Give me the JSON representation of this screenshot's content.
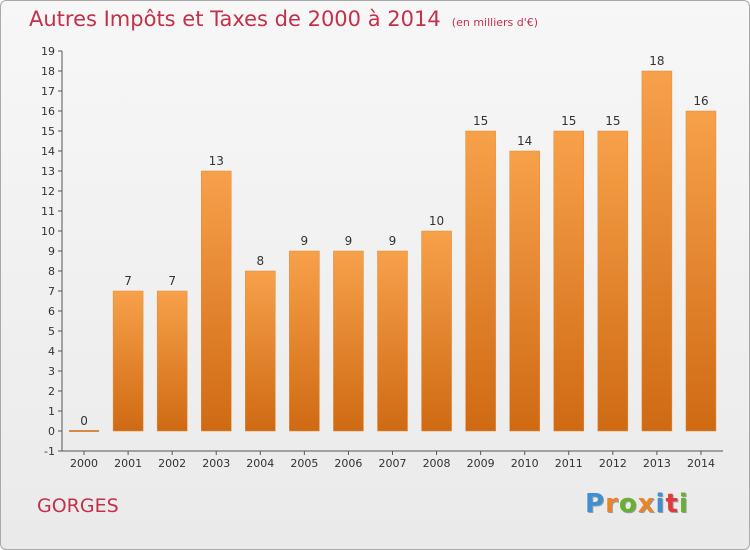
{
  "chart_data": {
    "type": "bar",
    "title": "Autres Impôts et Taxes de 2000 à 2014",
    "unit_note": "(en milliers d'€)",
    "categories": [
      "2000",
      "2001",
      "2002",
      "2003",
      "2004",
      "2005",
      "2006",
      "2007",
      "2008",
      "2009",
      "2010",
      "2011",
      "2012",
      "2013",
      "2014"
    ],
    "values": [
      0,
      7,
      7,
      13,
      8,
      9,
      9,
      9,
      10,
      15,
      14,
      15,
      15,
      18,
      16
    ],
    "ylim": [
      -1,
      19
    ],
    "yticks": [
      -1,
      0,
      1,
      2,
      3,
      4,
      5,
      6,
      7,
      8,
      9,
      10,
      11,
      12,
      13,
      14,
      15,
      16,
      17,
      18,
      19
    ],
    "grid": false,
    "bar_color_top": "#f7a14a",
    "bar_color_bottom": "#cf6a13",
    "axis_color": "#555555",
    "label_color": "#333333"
  },
  "footer": {
    "commune": "GORGES",
    "logo_text": "Proxiti",
    "logo_colors": [
      "#3f8fd2",
      "#e8842a",
      "#66b032",
      "#e8842a",
      "#3f8fd2",
      "#e03a3a",
      "#66b032"
    ]
  }
}
